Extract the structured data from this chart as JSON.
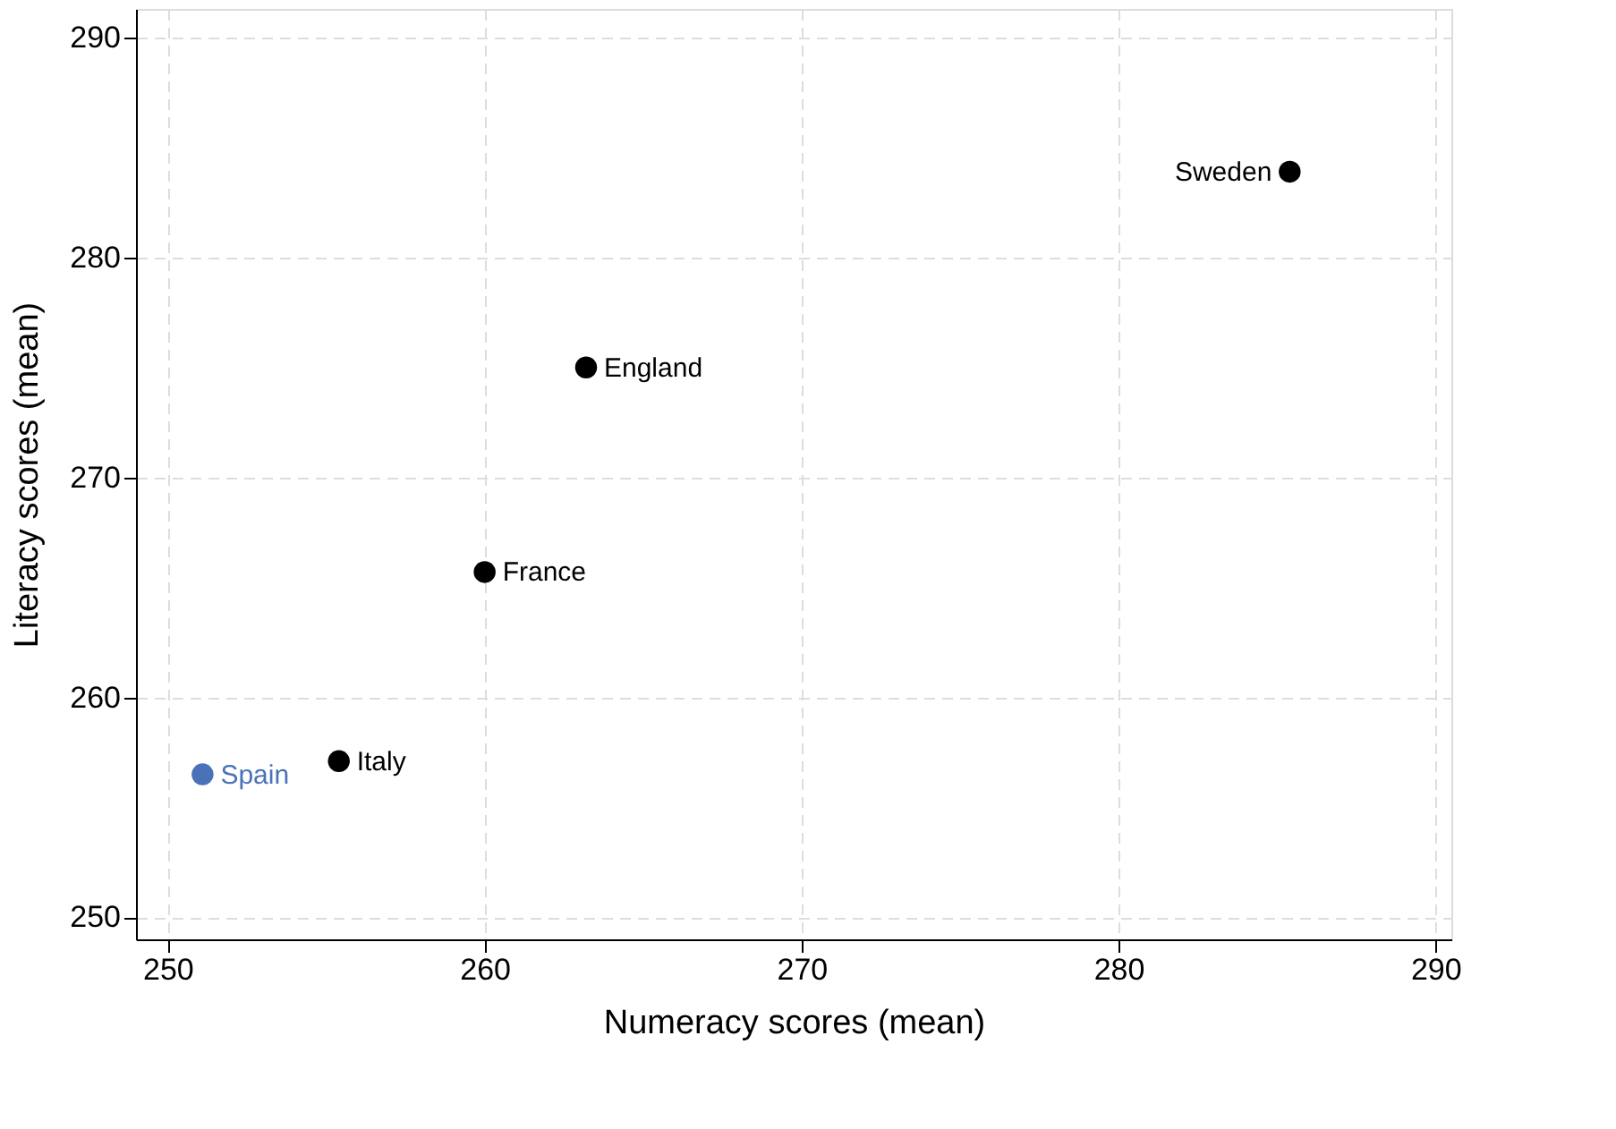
{
  "chart_data": {
    "type": "scatter",
    "xlabel": "Numeracy scores (mean)",
    "ylabel": "Literacy scores (mean)",
    "xlim": [
      249,
      290.5
    ],
    "ylim": [
      249,
      291.3
    ],
    "xticks": [
      250,
      260,
      270,
      280,
      290
    ],
    "yticks": [
      250,
      260,
      270,
      280,
      290
    ],
    "grid": true,
    "marker": "circle",
    "series": [
      {
        "color": "#000000",
        "x": [
          285.4,
          263.2,
          260.0,
          255.4
        ],
        "values": [
          283.9,
          275.0,
          265.7,
          257.1
        ]
      },
      {
        "color": "#4a72b8",
        "x": [
          251.1
        ],
        "values": [
          256.5
        ]
      }
    ],
    "annotations": [
      {
        "text": "Sweden",
        "x": 285.4,
        "y": 283.9
      },
      {
        "text": "England",
        "x": 263.2,
        "y": 275.0
      },
      {
        "text": "France",
        "x": 260.0,
        "y": 265.7
      },
      {
        "text": "Italy",
        "x": 255.4,
        "y": 257.1
      },
      {
        "text": "Spain",
        "x": 251.1,
        "y": 256.5
      }
    ]
  }
}
